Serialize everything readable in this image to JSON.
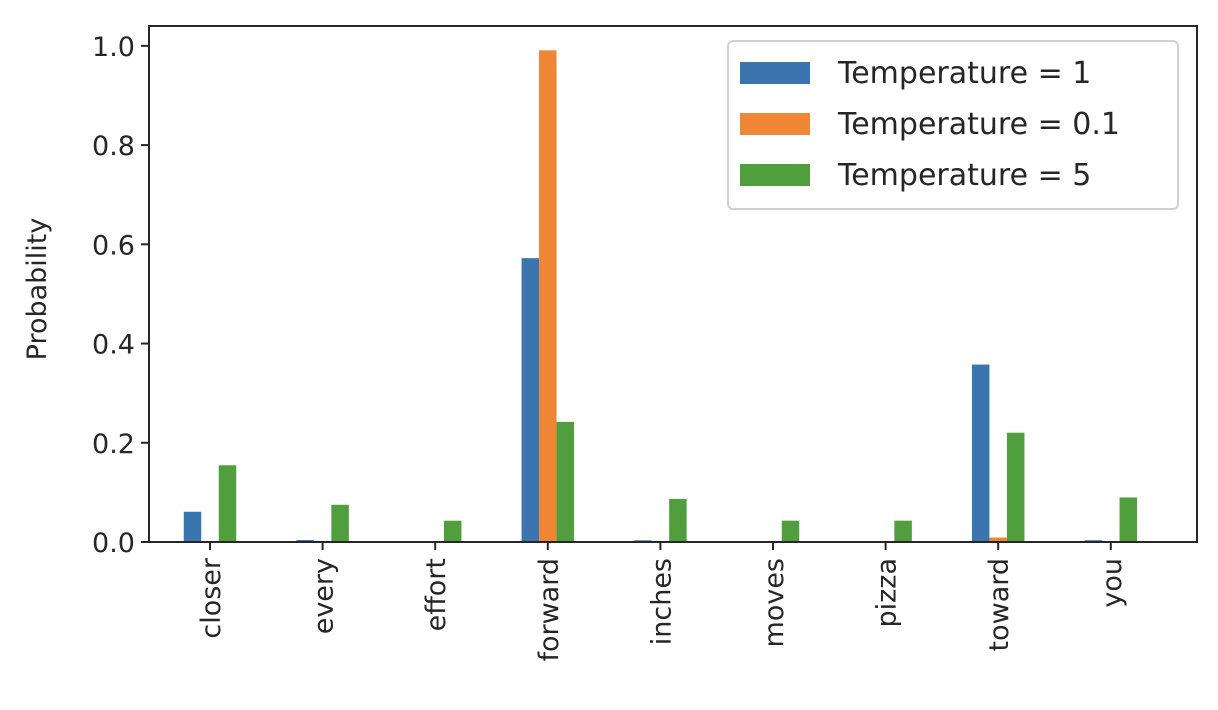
{
  "chart_data": {
    "type": "bar",
    "categories": [
      "closer",
      "every",
      "effort",
      "forward",
      "inches",
      "moves",
      "pizza",
      "toward",
      "you"
    ],
    "ylabel": "Probability",
    "xlabel": "",
    "ylim": [
      0,
      1.04
    ],
    "yticks": [
      "0.0",
      "0.2",
      "0.4",
      "0.6",
      "0.8",
      "1.0"
    ],
    "grid": false,
    "legend_position": "top-right",
    "series": [
      {
        "name": "Temperature = 1",
        "color": "#3a75b0",
        "values": [
          0.061,
          0.004,
          0.0001,
          0.5721,
          0.0034,
          0.0001,
          0.0001,
          0.3576,
          0.0036
        ]
      },
      {
        "name": "Temperature = 0.1",
        "color": "#ef8636",
        "values": [
          0.0,
          0.0,
          0.0,
          0.991,
          0.0,
          0.0,
          0.0,
          0.009,
          0.0
        ]
      },
      {
        "name": "Temperature = 5",
        "color": "#519e3e",
        "values": [
          0.1546,
          0.075,
          0.0429,
          0.2421,
          0.0869,
          0.043,
          0.043,
          0.2203,
          0.0898
        ]
      }
    ]
  }
}
